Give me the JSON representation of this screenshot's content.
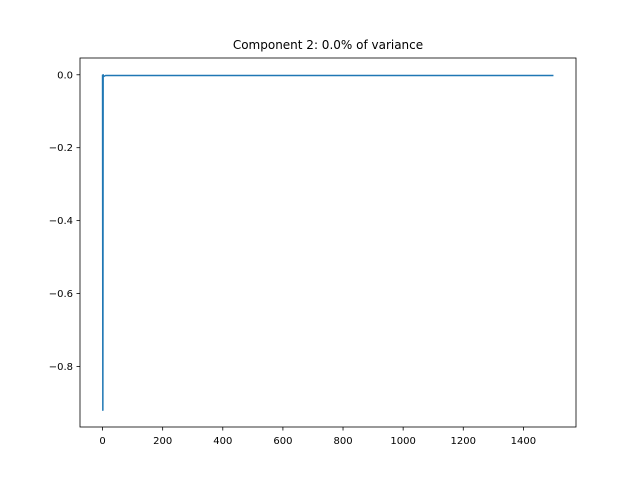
{
  "chart_data": {
    "type": "line",
    "title": "Component 2: 0.0% of variance",
    "xlabel": "",
    "ylabel": "",
    "xlim": [
      -75,
      1575
    ],
    "ylim": [
      -0.966,
      0.046
    ],
    "xticks": [
      0,
      200,
      400,
      600,
      800,
      1000,
      1200,
      1400
    ],
    "xtick_labels": [
      "0",
      "200",
      "400",
      "600",
      "800",
      "1000",
      "1200",
      "1400"
    ],
    "yticks": [
      0.0,
      -0.2,
      -0.4,
      -0.6,
      -0.8
    ],
    "ytick_labels": [
      "0.0",
      "−0.2",
      "−0.4",
      "−0.6",
      "−0.8"
    ],
    "grid": false,
    "series": [
      {
        "color": "#1f77b4",
        "points": [
          [
            0,
            0.0
          ],
          [
            1,
            -0.92
          ],
          [
            2,
            0.0
          ],
          [
            3,
            -0.005
          ],
          [
            10,
            -0.002
          ],
          [
            1500,
            -0.002
          ]
        ]
      }
    ]
  }
}
